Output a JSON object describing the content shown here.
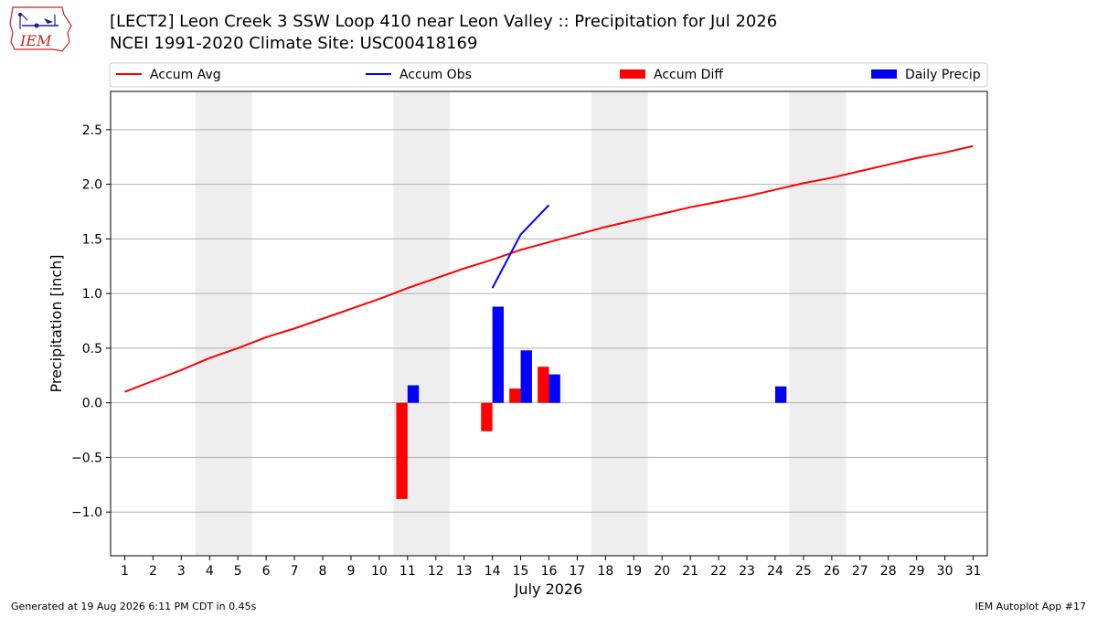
{
  "header": {
    "title_line1": "[LECT2] Leon Creek 3 SSW Loop 410 near Leon Valley :: Precipitation for Jul 2026",
    "title_line2": "NCEI 1991-2020 Climate Site: USC00418169",
    "logo_text": "IEM"
  },
  "footer": {
    "left": "Generated at 19 Aug 2026 6:11 PM CDT in 0.45s",
    "right": "IEM Autoplot App #17"
  },
  "colors": {
    "accum_avg": "#ff0000",
    "accum_obs": "#0000ff",
    "accum_diff": "#ff0000",
    "daily_precip": "#0000ff",
    "weekend_shade": "#eeeeee",
    "grid": "#b0b0b0"
  },
  "chart_data": {
    "type": "bar",
    "xlabel": "July 2026",
    "ylabel": "Precipitation [inch]",
    "xlim": [
      0.5,
      31.5
    ],
    "ylim": [
      -1.4,
      2.85
    ],
    "yticks": [
      -1.0,
      -0.5,
      0.0,
      0.5,
      1.0,
      1.5,
      2.0,
      2.5
    ],
    "ytick_labels": [
      "−1.0",
      "−0.5",
      "0.0",
      "0.5",
      "1.0",
      "1.5",
      "2.0",
      "2.5"
    ],
    "x": [
      1,
      2,
      3,
      4,
      5,
      6,
      7,
      8,
      9,
      10,
      11,
      12,
      13,
      14,
      15,
      16,
      17,
      18,
      19,
      20,
      21,
      22,
      23,
      24,
      25,
      26,
      27,
      28,
      29,
      30,
      31
    ],
    "grid": "horizontal",
    "legend_position": "top",
    "weekend_days": [
      [
        4,
        5
      ],
      [
        11,
        12
      ],
      [
        18,
        19
      ],
      [
        25,
        26
      ]
    ],
    "series": [
      {
        "name": "Accum Avg",
        "kind": "line",
        "x": [
          1,
          2,
          3,
          4,
          5,
          6,
          7,
          8,
          9,
          10,
          11,
          12,
          13,
          14,
          15,
          16,
          17,
          18,
          19,
          20,
          21,
          22,
          23,
          24,
          25,
          26,
          27,
          28,
          29,
          30,
          31
        ],
        "values": [
          0.1,
          0.2,
          0.3,
          0.41,
          0.5,
          0.6,
          0.68,
          0.77,
          0.86,
          0.95,
          1.05,
          1.14,
          1.23,
          1.31,
          1.4,
          1.47,
          1.54,
          1.61,
          1.67,
          1.73,
          1.79,
          1.84,
          1.89,
          1.95,
          2.01,
          2.06,
          2.12,
          2.18,
          2.24,
          2.29,
          2.35
        ]
      },
      {
        "name": "Accum Obs",
        "kind": "line",
        "x": [
          14,
          15,
          16
        ],
        "values": [
          1.05,
          1.54,
          1.81
        ]
      },
      {
        "name": "Accum Diff",
        "kind": "bar",
        "x": [
          11,
          14,
          15,
          16
        ],
        "values": [
          -0.88,
          -0.26,
          0.13,
          0.33
        ]
      },
      {
        "name": "Daily Precip",
        "kind": "bar",
        "x": [
          11,
          14,
          15,
          16,
          24
        ],
        "values": [
          0.16,
          0.88,
          0.48,
          0.26,
          0.15
        ]
      }
    ]
  }
}
